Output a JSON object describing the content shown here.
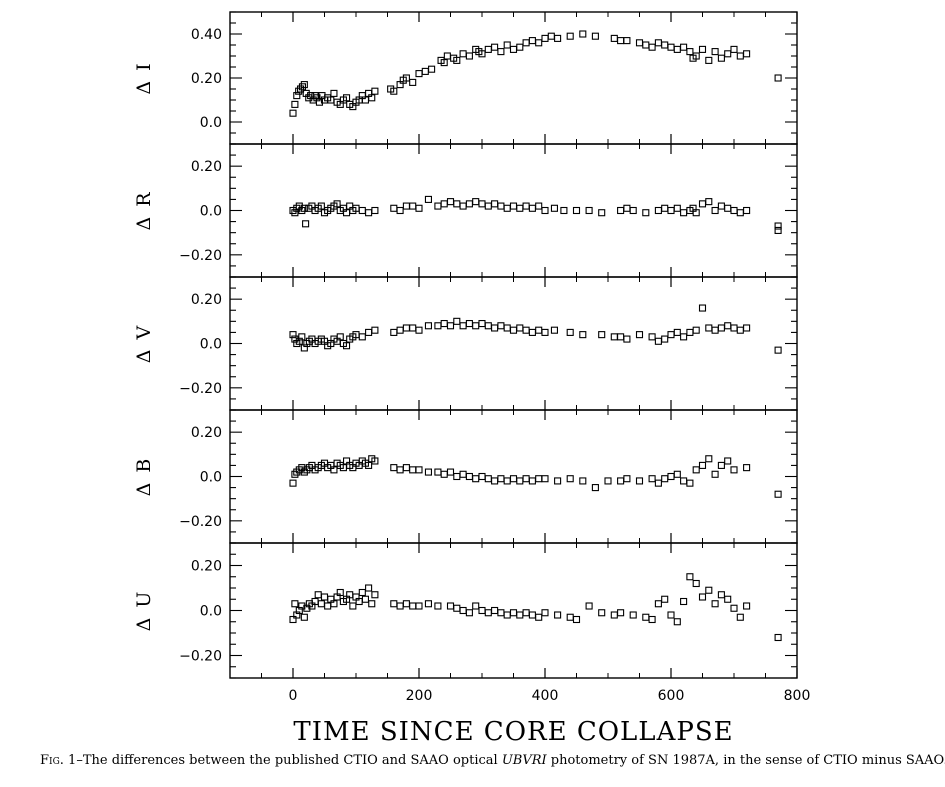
{
  "chart_data": {
    "type": "scatter",
    "xlabel": "TIME SINCE CORE COLLAPSE",
    "xlim": [
      -100,
      800
    ],
    "x_ticks": [
      0,
      200,
      400,
      600,
      800
    ],
    "marker": "open-square",
    "panels": [
      {
        "ylabel": "Δ I",
        "ylim": [
          -0.1,
          0.5
        ],
        "y_ticks": [
          0.0,
          0.2,
          0.4
        ],
        "y_tick_labels": [
          "0.0",
          "0.20",
          "0.40"
        ],
        "x": [
          0,
          3,
          6,
          9,
          12,
          15,
          18,
          21,
          25,
          28,
          32,
          35,
          38,
          42,
          46,
          50,
          55,
          60,
          65,
          70,
          75,
          80,
          85,
          90,
          95,
          100,
          105,
          110,
          115,
          120,
          125,
          130,
          155,
          160,
          170,
          175,
          180,
          190,
          200,
          210,
          220,
          235,
          240,
          245,
          255,
          260,
          270,
          280,
          290,
          295,
          300,
          310,
          320,
          330,
          340,
          350,
          360,
          370,
          380,
          390,
          400,
          410,
          420,
          440,
          460,
          480,
          510,
          520,
          530,
          550,
          560,
          570,
          580,
          590,
          600,
          610,
          620,
          630,
          635,
          640,
          650,
          660,
          670,
          680,
          690,
          700,
          710,
          720,
          770
        ],
        "y": [
          0.04,
          0.08,
          0.12,
          0.14,
          0.15,
          0.16,
          0.17,
          0.13,
          0.11,
          0.12,
          0.1,
          0.12,
          0.11,
          0.09,
          0.12,
          0.1,
          0.11,
          0.1,
          0.13,
          0.09,
          0.08,
          0.1,
          0.11,
          0.08,
          0.07,
          0.09,
          0.1,
          0.12,
          0.1,
          0.13,
          0.11,
          0.14,
          0.15,
          0.14,
          0.17,
          0.19,
          0.2,
          0.18,
          0.22,
          0.23,
          0.24,
          0.28,
          0.27,
          0.3,
          0.29,
          0.28,
          0.31,
          0.3,
          0.33,
          0.32,
          0.31,
          0.33,
          0.34,
          0.32,
          0.35,
          0.33,
          0.34,
          0.36,
          0.37,
          0.36,
          0.38,
          0.39,
          0.38,
          0.39,
          0.4,
          0.39,
          0.38,
          0.37,
          0.37,
          0.36,
          0.35,
          0.34,
          0.36,
          0.35,
          0.34,
          0.33,
          0.34,
          0.32,
          0.29,
          0.3,
          0.33,
          0.28,
          0.32,
          0.29,
          0.31,
          0.33,
          0.3,
          0.31,
          0.2
        ]
      },
      {
        "ylabel": "Δ R",
        "ylim": [
          -0.3,
          0.3
        ],
        "y_ticks": [
          -0.2,
          0.0,
          0.2
        ],
        "y_tick_labels": [
          "−0.20",
          "0.0",
          "0.20"
        ],
        "x": [
          0,
          3,
          6,
          10,
          14,
          18,
          20,
          25,
          30,
          35,
          40,
          45,
          50,
          55,
          60,
          65,
          70,
          75,
          80,
          85,
          90,
          95,
          100,
          110,
          120,
          130,
          160,
          170,
          180,
          190,
          200,
          215,
          230,
          240,
          250,
          260,
          270,
          280,
          290,
          300,
          310,
          320,
          330,
          340,
          350,
          360,
          370,
          380,
          390,
          400,
          415,
          430,
          450,
          470,
          490,
          520,
          530,
          540,
          560,
          580,
          590,
          600,
          610,
          620,
          630,
          635,
          640,
          650,
          660,
          670,
          680,
          690,
          700,
          710,
          720,
          770,
          770
        ],
        "y": [
          0.0,
          -0.01,
          0.01,
          0.02,
          0.0,
          0.01,
          -0.06,
          0.01,
          0.02,
          0.0,
          0.01,
          0.02,
          -0.01,
          0.0,
          0.01,
          0.02,
          0.03,
          0.0,
          0.01,
          -0.01,
          0.02,
          0.0,
          0.01,
          0.0,
          -0.01,
          0.0,
          0.01,
          0.0,
          0.02,
          0.02,
          0.01,
          0.05,
          0.02,
          0.03,
          0.04,
          0.03,
          0.02,
          0.03,
          0.04,
          0.03,
          0.02,
          0.03,
          0.02,
          0.01,
          0.02,
          0.01,
          0.02,
          0.01,
          0.02,
          0.0,
          0.01,
          0.0,
          0.0,
          0.0,
          -0.01,
          0.0,
          0.01,
          0.0,
          -0.01,
          0.0,
          0.01,
          0.0,
          0.01,
          -0.01,
          0.0,
          0.01,
          -0.01,
          0.03,
          0.04,
          0.0,
          0.02,
          0.01,
          0.0,
          -0.01,
          0.0,
          -0.07,
          -0.09
        ]
      },
      {
        "ylabel": "Δ V",
        "ylim": [
          -0.3,
          0.3
        ],
        "y_ticks": [
          -0.2,
          0.0,
          0.2
        ],
        "y_tick_labels": [
          "−0.20",
          "0.0",
          "0.20"
        ],
        "x": [
          0,
          3,
          6,
          10,
          14,
          18,
          22,
          26,
          30,
          35,
          40,
          45,
          50,
          55,
          60,
          65,
          70,
          75,
          80,
          85,
          90,
          95,
          100,
          110,
          120,
          130,
          160,
          170,
          180,
          190,
          200,
          215,
          230,
          240,
          250,
          260,
          270,
          280,
          290,
          300,
          310,
          320,
          330,
          340,
          350,
          360,
          370,
          380,
          390,
          400,
          415,
          440,
          460,
          490,
          510,
          520,
          530,
          550,
          570,
          580,
          590,
          600,
          610,
          620,
          630,
          640,
          650,
          660,
          670,
          680,
          690,
          700,
          710,
          720,
          770
        ],
        "y": [
          0.04,
          0.02,
          0.0,
          0.01,
          0.03,
          -0.02,
          0.0,
          0.01,
          0.02,
          0.0,
          0.01,
          0.02,
          0.01,
          -0.01,
          0.0,
          0.02,
          0.01,
          0.03,
          0.0,
          -0.01,
          0.02,
          0.03,
          0.04,
          0.03,
          0.05,
          0.06,
          0.05,
          0.06,
          0.07,
          0.07,
          0.06,
          0.08,
          0.08,
          0.09,
          0.08,
          0.1,
          0.08,
          0.09,
          0.08,
          0.09,
          0.08,
          0.07,
          0.08,
          0.07,
          0.06,
          0.07,
          0.06,
          0.05,
          0.06,
          0.05,
          0.06,
          0.05,
          0.04,
          0.04,
          0.03,
          0.03,
          0.02,
          0.04,
          0.03,
          0.01,
          0.02,
          0.04,
          0.05,
          0.03,
          0.05,
          0.06,
          0.16,
          0.07,
          0.06,
          0.07,
          0.08,
          0.07,
          0.06,
          0.07,
          -0.03
        ]
      },
      {
        "ylabel": "Δ B",
        "ylim": [
          -0.3,
          0.3
        ],
        "y_ticks": [
          -0.2,
          0.0,
          0.2
        ],
        "y_tick_labels": [
          "−0.20",
          "0.0",
          "0.20"
        ],
        "x": [
          0,
          3,
          6,
          10,
          14,
          18,
          22,
          26,
          30,
          35,
          40,
          45,
          50,
          55,
          60,
          65,
          70,
          75,
          80,
          85,
          90,
          95,
          100,
          105,
          110,
          115,
          120,
          125,
          130,
          160,
          170,
          180,
          190,
          200,
          215,
          230,
          240,
          250,
          260,
          270,
          280,
          290,
          300,
          310,
          320,
          330,
          340,
          350,
          360,
          370,
          380,
          390,
          400,
          420,
          440,
          460,
          480,
          500,
          520,
          530,
          550,
          570,
          580,
          590,
          600,
          610,
          620,
          630,
          640,
          650,
          660,
          670,
          680,
          690,
          700,
          720,
          770
        ],
        "y": [
          -0.03,
          0.01,
          0.02,
          0.03,
          0.04,
          0.02,
          0.03,
          0.04,
          0.05,
          0.03,
          0.04,
          0.05,
          0.06,
          0.04,
          0.05,
          0.03,
          0.06,
          0.05,
          0.04,
          0.07,
          0.05,
          0.04,
          0.06,
          0.05,
          0.07,
          0.06,
          0.05,
          0.08,
          0.07,
          0.04,
          0.03,
          0.04,
          0.03,
          0.03,
          0.02,
          0.02,
          0.01,
          0.02,
          0.0,
          0.01,
          0.0,
          -0.01,
          0.0,
          -0.01,
          -0.02,
          -0.01,
          -0.02,
          -0.01,
          -0.02,
          -0.01,
          -0.02,
          -0.01,
          -0.01,
          -0.02,
          -0.01,
          -0.02,
          -0.05,
          -0.02,
          -0.02,
          -0.01,
          -0.02,
          -0.01,
          -0.03,
          -0.01,
          0.0,
          0.01,
          -0.02,
          -0.03,
          0.03,
          0.05,
          0.08,
          0.01,
          0.05,
          0.07,
          0.03,
          0.04,
          -0.08
        ]
      },
      {
        "ylabel": "Δ U",
        "ylim": [
          -0.3,
          0.3
        ],
        "y_ticks": [
          -0.2,
          0.0,
          0.2
        ],
        "y_tick_labels": [
          "−0.20",
          "0.0",
          "0.20"
        ],
        "x": [
          0,
          3,
          6,
          10,
          14,
          18,
          22,
          26,
          30,
          35,
          40,
          45,
          50,
          55,
          60,
          65,
          70,
          75,
          80,
          85,
          90,
          95,
          100,
          105,
          110,
          115,
          120,
          125,
          130,
          160,
          170,
          180,
          190,
          200,
          215,
          230,
          250,
          260,
          270,
          280,
          290,
          300,
          310,
          320,
          330,
          340,
          350,
          360,
          370,
          380,
          390,
          400,
          420,
          440,
          450,
          470,
          490,
          510,
          520,
          540,
          560,
          570,
          580,
          590,
          600,
          610,
          620,
          630,
          640,
          650,
          660,
          670,
          680,
          690,
          700,
          710,
          720,
          770
        ],
        "y": [
          -0.04,
          0.03,
          -0.02,
          0.0,
          0.02,
          -0.03,
          0.01,
          0.03,
          0.02,
          0.04,
          0.07,
          0.03,
          0.06,
          0.02,
          0.05,
          0.03,
          0.06,
          0.08,
          0.04,
          0.05,
          0.07,
          0.02,
          0.06,
          0.04,
          0.08,
          0.05,
          0.1,
          0.03,
          0.07,
          0.03,
          0.02,
          0.03,
          0.02,
          0.02,
          0.03,
          0.02,
          0.02,
          0.01,
          0.0,
          -0.01,
          0.02,
          0.0,
          -0.01,
          0.0,
          -0.01,
          -0.02,
          -0.01,
          -0.02,
          -0.01,
          -0.02,
          -0.03,
          -0.01,
          -0.02,
          -0.03,
          -0.04,
          0.02,
          -0.01,
          -0.02,
          -0.01,
          -0.02,
          -0.03,
          -0.04,
          0.03,
          0.05,
          -0.02,
          -0.05,
          0.04,
          0.15,
          0.12,
          0.06,
          0.09,
          0.03,
          0.07,
          0.05,
          0.01,
          -0.03,
          0.02,
          -0.12
        ]
      }
    ]
  },
  "caption": {
    "fig_label": "Fig.",
    "fig_number": "1",
    "text_before": "–The differences between the published CTIO and SAAO optical ",
    "italic": "UBVRI",
    "text_after": " photometry of SN 1987A, in the sense of CTIO minus SAAO."
  }
}
